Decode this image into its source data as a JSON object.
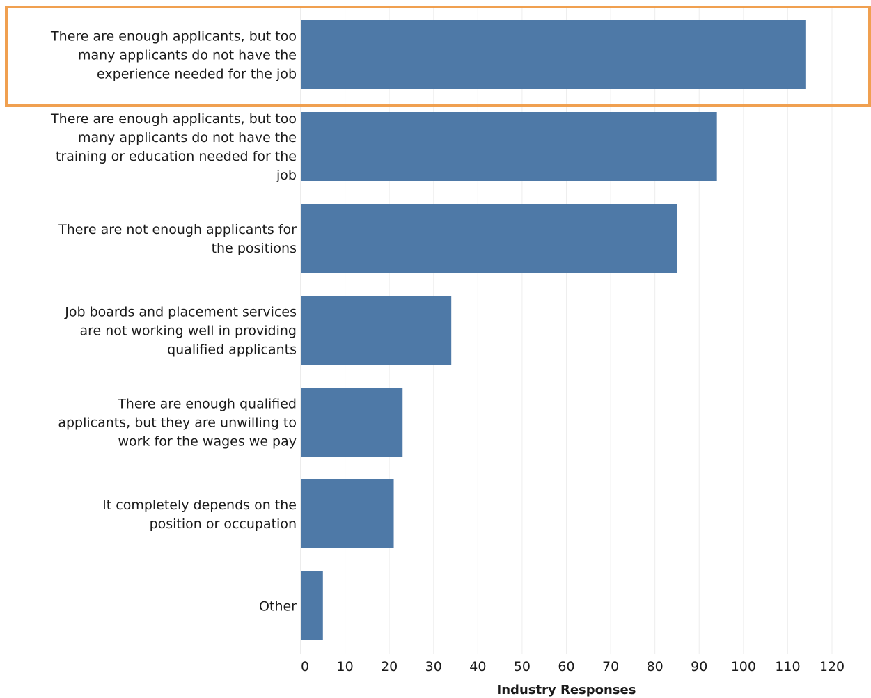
{
  "chart_data": {
    "type": "bar",
    "orientation": "horizontal",
    "title": "",
    "xlabel": "Industry Responses",
    "ylabel": "",
    "xlim": [
      0,
      120
    ],
    "x_ticks": [
      0,
      10,
      20,
      30,
      40,
      50,
      60,
      70,
      80,
      90,
      100,
      110,
      120
    ],
    "grid": true,
    "categories": [
      "There are enough applicants, but too many applicants do not have the experience needed for the job",
      "There are enough applicants, but too many applicants do not have the training or education needed for the job",
      "There are not enough applicants for the positions",
      "Job boards and placement services are not working well in providing qualified applicants",
      "There are enough qualified applicants, but they are unwilling to work for the wages we pay",
      "It completely depends on the position or occupation",
      "Other"
    ],
    "category_lines": [
      [
        "There are enough applicants, but too",
        "many applicants do not have the",
        "experience needed for the job"
      ],
      [
        "There are enough applicants, but too",
        "many applicants do not have the",
        "training or education needed for the",
        "job"
      ],
      [
        "There are not enough applicants for",
        "the positions"
      ],
      [
        "Job boards and placement services",
        "are not working well in providing",
        "qualified applicants"
      ],
      [
        "There are enough qualified",
        "applicants, but they are unwilling to",
        "work for the wages we pay"
      ],
      [
        "It completely depends on the",
        "position or occupation"
      ],
      [
        "Other"
      ]
    ],
    "values": [
      114,
      94,
      85,
      34,
      23,
      21,
      5
    ],
    "bar_color": "#4e79a7",
    "highlight": {
      "category_index": 0,
      "color": "#f0a050"
    }
  }
}
